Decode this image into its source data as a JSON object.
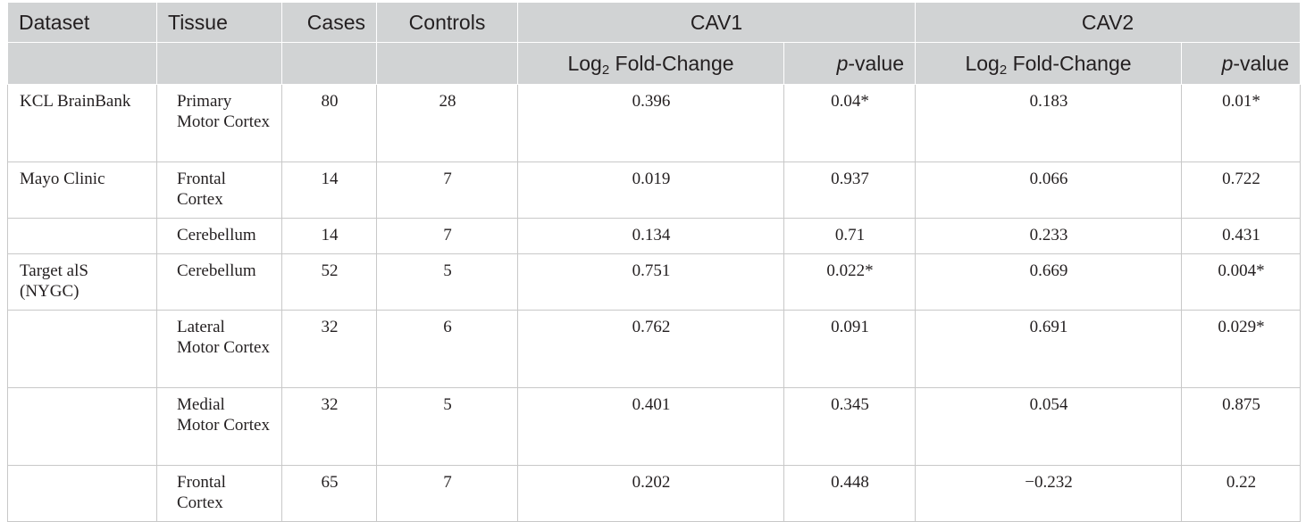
{
  "table": {
    "headers": {
      "dataset": "Dataset",
      "tissue": "Tissue",
      "cases": "Cases",
      "controls": "Controls",
      "cav1": "CAV1",
      "cav2": "CAV2",
      "log2_prefix": "Log",
      "log2_sub": "2",
      "log2_suffix": " Fold-Change",
      "p_italic": "p",
      "p_suffix": "-value"
    },
    "rows": [
      {
        "dataset": "KCL BrainBank",
        "tissue": "Primary Motor Cortex",
        "cases": "80",
        "controls": "28",
        "cav1_fc": "0.396",
        "cav1_p": "0.04*",
        "cav2_fc": "0.183",
        "cav2_p": "0.01*"
      },
      {
        "dataset": "Mayo Clinic",
        "tissue": "Frontal Cortex",
        "cases": "14",
        "controls": "7",
        "cav1_fc": "0.019",
        "cav1_p": "0.937",
        "cav2_fc": "0.066",
        "cav2_p": "0.722"
      },
      {
        "dataset": "",
        "tissue": "Cerebellum",
        "cases": "14",
        "controls": "7",
        "cav1_fc": "0.134",
        "cav1_p": "0.71",
        "cav2_fc": "0.233",
        "cav2_p": "0.431"
      },
      {
        "dataset": "Target alS (NYGC)",
        "tissue": "Cerebellum",
        "cases": "52",
        "controls": "5",
        "cav1_fc": "0.751",
        "cav1_p": "0.022*",
        "cav2_fc": "0.669",
        "cav2_p": "0.004*"
      },
      {
        "dataset": "",
        "tissue": "Lateral Motor Cortex",
        "cases": "32",
        "controls": "6",
        "cav1_fc": "0.762",
        "cav1_p": "0.091",
        "cav2_fc": "0.691",
        "cav2_p": "0.029*"
      },
      {
        "dataset": "",
        "tissue": "Medial Motor Cortex",
        "cases": "32",
        "controls": "5",
        "cav1_fc": "0.401",
        "cav1_p": "0.345",
        "cav2_fc": "0.054",
        "cav2_p": "0.875"
      },
      {
        "dataset": "",
        "tissue": "Frontal Cortex",
        "cases": "65",
        "controls": "7",
        "cav1_fc": "0.202",
        "cav1_p": "0.448",
        "cav2_fc": "−0.232",
        "cav2_p": "0.22"
      }
    ]
  }
}
